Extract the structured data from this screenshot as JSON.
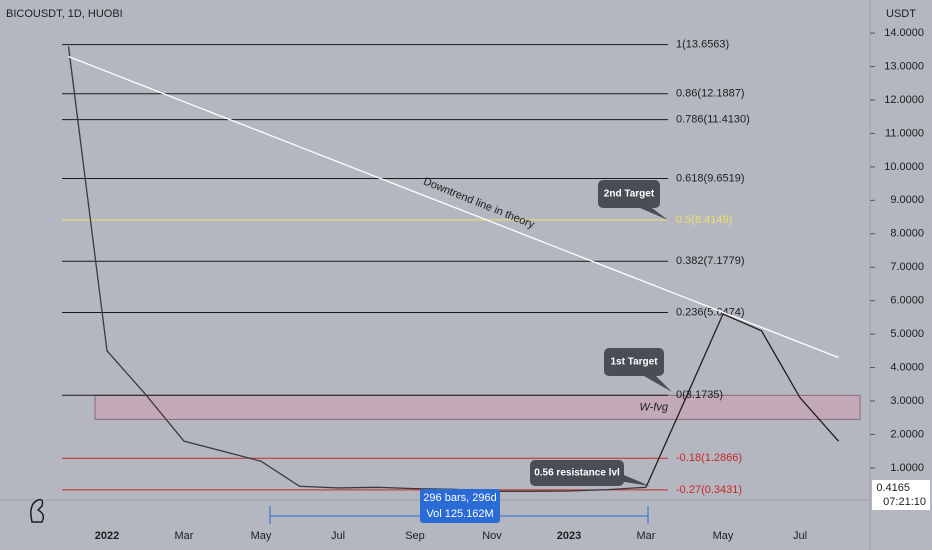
{
  "chart_data": {
    "type": "line",
    "title": "BICOUSDT, 1D, HUOBI",
    "y_axis_label": "USDT",
    "categories": [
      null,
      "2022",
      null,
      "Mar",
      null,
      "May",
      null,
      "Jul",
      null,
      "Sep",
      null,
      "Nov",
      null,
      "2023",
      null,
      "Mar",
      null,
      "May",
      null,
      "Jul",
      null
    ],
    "series": [
      {
        "color": "#3a3a3a",
        "values": [
          13.6,
          4.5,
          3.2,
          1.8,
          1.5,
          1.2,
          0.45,
          0.4,
          0.42,
          0.38,
          0.36,
          0.3,
          0.3,
          0.31,
          0.35,
          0.42,
          null,
          null,
          null,
          null,
          null
        ]
      },
      {
        "color": "#1e1e1e",
        "values": [
          null,
          null,
          null,
          null,
          null,
          null,
          null,
          null,
          null,
          null,
          null,
          null,
          null,
          null,
          null,
          0.42,
          3.0,
          5.6,
          5.1,
          3.1,
          1.8
        ]
      },
      {
        "color": "#ffffff",
        "values": [
          13.3,
          12.85,
          12.4,
          11.95,
          11.5,
          11.05,
          10.6,
          10.15,
          9.7,
          9.25,
          8.8,
          8.35,
          7.9,
          7.45,
          7.0,
          6.55,
          6.1,
          5.65,
          5.2,
          4.75,
          4.3
        ]
      }
    ],
    "ylim": [
      0.04,
      14.99
    ],
    "yticks": [
      {
        "value": 1,
        "label": "1.0000"
      },
      {
        "value": 2,
        "label": "2.0000"
      },
      {
        "value": 3,
        "label": "3.0000"
      },
      {
        "value": 4,
        "label": "4.0000"
      },
      {
        "value": 5,
        "label": "5.0000"
      },
      {
        "value": 6,
        "label": "6.0000"
      },
      {
        "value": 7,
        "label": "7.0000"
      },
      {
        "value": 8,
        "label": "8.0000"
      },
      {
        "value": 9,
        "label": "9.0000"
      },
      {
        "value": 10,
        "label": "10.0000"
      },
      {
        "value": 11,
        "label": "11.0000"
      },
      {
        "value": 12,
        "label": "12.0000"
      },
      {
        "value": 13,
        "label": "13.0000"
      },
      {
        "value": 14,
        "label": "14.0000"
      }
    ],
    "grid": false,
    "levels": [
      {
        "label": "1(13.6563)",
        "value": 13.6563,
        "color": "#1a1a1a"
      },
      {
        "label": "0.86(12.1887)",
        "value": 12.1887,
        "color": "#1a1a1a"
      },
      {
        "label": "0.786(11.4130)",
        "value": 11.413,
        "color": "#1a1a1a"
      },
      {
        "label": "0.618(9.6519)",
        "value": 9.6519,
        "color": "#1a1a1a"
      },
      {
        "label": "0.5(8.4149)",
        "value": 8.4149,
        "color": "#f2e06a"
      },
      {
        "label": "0.382(7.1779)",
        "value": 7.1779,
        "color": "#1a1a1a"
      },
      {
        "label": "0.236(5.6474)",
        "value": 5.6474,
        "color": "#1a1a1a"
      },
      {
        "label": "0(3.1735)",
        "value": 3.1735,
        "color": "#1a1a1a"
      },
      {
        "label": "-0.18(1.2866)",
        "value": 1.2866,
        "color": "#c62828"
      },
      {
        "label": "-0.27(0.3431)",
        "value": 0.3431,
        "color": "#c62828"
      }
    ],
    "zone": {
      "label": "W-fvg",
      "range": [
        2.45,
        3.17
      ]
    },
    "trendline_label": "Downtrend line in theory",
    "callouts": [
      "2nd Target",
      "1st Target",
      "0.56 resistance lvl"
    ],
    "measure": {
      "bars": "296 bars, 296d",
      "volume": "Vol 125.162M"
    },
    "last_price": 0.4165,
    "countdown": "07:21:10"
  }
}
